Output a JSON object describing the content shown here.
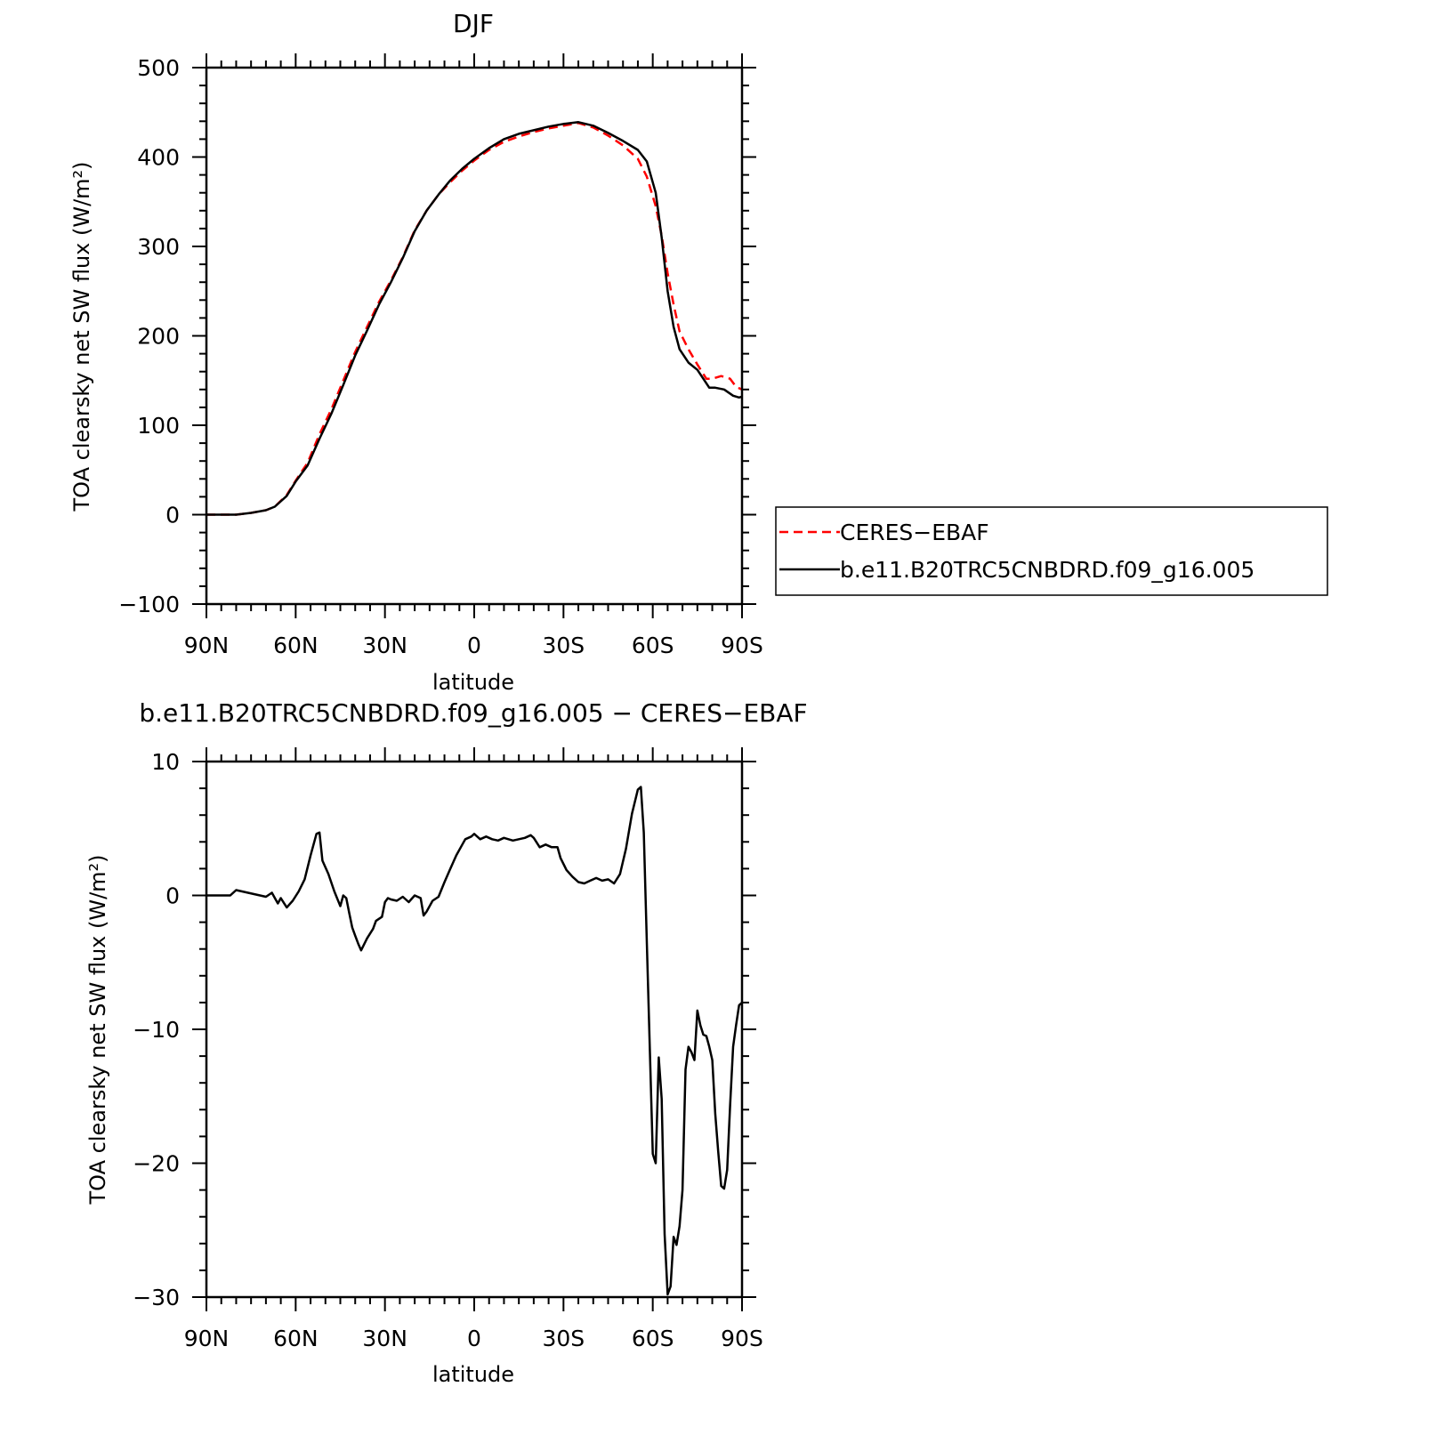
{
  "chart_data": [
    {
      "type": "line",
      "title": "DJF",
      "xlabel": "latitude",
      "ylabel": "TOA clearsky net SW flux (W/m²)",
      "x_ticks": [
        "90N",
        "60N",
        "30N",
        "0",
        "30S",
        "60S",
        "90S"
      ],
      "y_ticks": [
        "500",
        "400",
        "300",
        "200",
        "100",
        "0",
        "−100"
      ],
      "xlim": [
        90,
        -90
      ],
      "ylim": [
        -100,
        500
      ],
      "grid": false,
      "legend_position": "right",
      "legend": [
        "CERES−EBAF",
        "b.e11.B20TRC5CNBDRD.f09_g16.005"
      ],
      "series": [
        {
          "name": "CERES−EBAF",
          "color": "#ff0000",
          "dash": "dashed",
          "points": [
            [
              90,
              0
            ],
            [
              80,
              0
            ],
            [
              75,
              2
            ],
            [
              70,
              5
            ],
            [
              67,
              9
            ],
            [
              63,
              22
            ],
            [
              60,
              38
            ],
            [
              56,
              58
            ],
            [
              52,
              90
            ],
            [
              48,
              118
            ],
            [
              44,
              150
            ],
            [
              40,
              182
            ],
            [
              36,
              210
            ],
            [
              32,
              238
            ],
            [
              28,
              262
            ],
            [
              24,
              288
            ],
            [
              20,
              318
            ],
            [
              16,
              340
            ],
            [
              12,
              358
            ],
            [
              8,
              372
            ],
            [
              4,
              385
            ],
            [
              0,
              396
            ],
            [
              -5,
              408
            ],
            [
              -10,
              417
            ],
            [
              -15,
              423
            ],
            [
              -20,
              428
            ],
            [
              -25,
              432
            ],
            [
              -30,
              435
            ],
            [
              -35,
              438
            ],
            [
              -40,
              433
            ],
            [
              -45,
              424
            ],
            [
              -50,
              413
            ],
            [
              -55,
              398
            ],
            [
              -58,
              378
            ],
            [
              -61,
              345
            ],
            [
              -63,
              312
            ],
            [
              -65,
              270
            ],
            [
              -67,
              235
            ],
            [
              -69,
              205
            ],
            [
              -72,
              185
            ],
            [
              -75,
              168
            ],
            [
              -78,
              152
            ],
            [
              -80,
              152
            ],
            [
              -83,
              155
            ],
            [
              -86,
              152
            ],
            [
              -88,
              143
            ],
            [
              -90,
              140
            ]
          ]
        },
        {
          "name": "b.e11.B20TRC5CNBDRD.f09_g16.005",
          "color": "#000000",
          "dash": "solid",
          "points": [
            [
              90,
              0
            ],
            [
              80,
              0
            ],
            [
              75,
              2
            ],
            [
              70,
              5
            ],
            [
              67,
              9
            ],
            [
              63,
              21
            ],
            [
              60,
              37
            ],
            [
              56,
              55
            ],
            [
              52,
              85
            ],
            [
              48,
              113
            ],
            [
              44,
              145
            ],
            [
              40,
              178
            ],
            [
              36,
              206
            ],
            [
              32,
              235
            ],
            [
              28,
              260
            ],
            [
              24,
              287
            ],
            [
              20,
              317
            ],
            [
              16,
              340
            ],
            [
              12,
              358
            ],
            [
              8,
              374
            ],
            [
              4,
              387
            ],
            [
              0,
              398
            ],
            [
              -5,
              410
            ],
            [
              -10,
              420
            ],
            [
              -15,
              426
            ],
            [
              -20,
              430
            ],
            [
              -25,
              434
            ],
            [
              -30,
              437
            ],
            [
              -35,
              439
            ],
            [
              -40,
              435
            ],
            [
              -45,
              427
            ],
            [
              -50,
              418
            ],
            [
              -55,
              408
            ],
            [
              -58,
              395
            ],
            [
              -61,
              360
            ],
            [
              -63,
              310
            ],
            [
              -65,
              250
            ],
            [
              -67,
              210
            ],
            [
              -69,
              185
            ],
            [
              -72,
              170
            ],
            [
              -75,
              162
            ],
            [
              -77,
              152
            ],
            [
              -79,
              142
            ],
            [
              -81,
              142
            ],
            [
              -84,
              140
            ],
            [
              -87,
              133
            ],
            [
              -89,
              131
            ],
            [
              -90,
              132
            ]
          ]
        }
      ]
    },
    {
      "type": "line",
      "title": "b.e11.B20TRC5CNBDRD.f09_g16.005 − CERES−EBAF",
      "xlabel": "latitude",
      "ylabel": "TOA clearsky net SW flux (W/m²)",
      "x_ticks": [
        "90N",
        "60N",
        "30N",
        "0",
        "30S",
        "60S",
        "90S"
      ],
      "y_ticks": [
        "10",
        "0",
        "−10",
        "−20",
        "−30"
      ],
      "xlim": [
        90,
        -90
      ],
      "ylim": [
        -30,
        10
      ],
      "grid": false,
      "series": [
        {
          "name": "b.e11.B20TRC5CNBDRD.f09_g16.005 − CERES−EBAF",
          "color": "#000000",
          "dash": "solid",
          "points": [
            [
              90,
              0
            ],
            [
              82,
              0
            ],
            [
              80,
              0.4
            ],
            [
              78,
              0.3
            ],
            [
              74,
              0.1
            ],
            [
              70,
              -0.1
            ],
            [
              68,
              0.2
            ],
            [
              66,
              -0.6
            ],
            [
              65,
              -0.2
            ],
            [
              63,
              -0.9
            ],
            [
              61,
              -0.4
            ],
            [
              59,
              0.3
            ],
            [
              57,
              1.2
            ],
            [
              55,
              3.0
            ],
            [
              53,
              4.6
            ],
            [
              52,
              4.7
            ],
            [
              51,
              2.6
            ],
            [
              49,
              1.6
            ],
            [
              47,
              0.3
            ],
            [
              45,
              -0.8
            ],
            [
              44,
              0
            ],
            [
              43,
              -0.2
            ],
            [
              42,
              -1.3
            ],
            [
              41,
              -2.4
            ],
            [
              40,
              -3.0
            ],
            [
              39,
              -3.6
            ],
            [
              38,
              -4.1
            ],
            [
              36,
              -3.2
            ],
            [
              34,
              -2.5
            ],
            [
              33,
              -1.9
            ],
            [
              31,
              -1.6
            ],
            [
              30,
              -0.5
            ],
            [
              29,
              -0.2
            ],
            [
              28,
              -0.3
            ],
            [
              26,
              -0.4
            ],
            [
              24,
              -0.1
            ],
            [
              22,
              -0.5
            ],
            [
              20,
              0
            ],
            [
              18,
              -0.2
            ],
            [
              17,
              -1.5
            ],
            [
              16,
              -1.2
            ],
            [
              14,
              -0.4
            ],
            [
              12,
              -0.1
            ],
            [
              10,
              1.0
            ],
            [
              8,
              2.0
            ],
            [
              6,
              3.0
            ],
            [
              4,
              3.8
            ],
            [
              3,
              4.2
            ],
            [
              1,
              4.4
            ],
            [
              0,
              4.6
            ],
            [
              -2,
              4.2
            ],
            [
              -4,
              4.4
            ],
            [
              -6,
              4.2
            ],
            [
              -8,
              4.1
            ],
            [
              -10,
              4.3
            ],
            [
              -13,
              4.1
            ],
            [
              -15,
              4.2
            ],
            [
              -17,
              4.3
            ],
            [
              -19,
              4.5
            ],
            [
              -20,
              4.3
            ],
            [
              -22,
              3.6
            ],
            [
              -24,
              3.8
            ],
            [
              -26,
              3.6
            ],
            [
              -28,
              3.6
            ],
            [
              -29,
              2.8
            ],
            [
              -31,
              1.9
            ],
            [
              -33,
              1.4
            ],
            [
              -35,
              1.0
            ],
            [
              -37,
              0.9
            ],
            [
              -39,
              1.1
            ],
            [
              -41,
              1.3
            ],
            [
              -43,
              1.1
            ],
            [
              -45,
              1.2
            ],
            [
              -47,
              0.9
            ],
            [
              -49,
              1.6
            ],
            [
              -51,
              3.5
            ],
            [
              -53,
              6.1
            ],
            [
              -55,
              7.9
            ],
            [
              -56,
              8.1
            ],
            [
              -57,
              4.7
            ],
            [
              -58,
              -3.5
            ],
            [
              -59,
              -11.3
            ],
            [
              -60,
              -19.3
            ],
            [
              -61,
              -20.0
            ],
            [
              -62,
              -12.1
            ],
            [
              -63,
              -15.2
            ],
            [
              -64,
              -25.3
            ],
            [
              -65,
              -29.8
            ],
            [
              -66,
              -29.2
            ],
            [
              -67,
              -25.5
            ],
            [
              -68,
              -26.1
            ],
            [
              -69,
              -24.7
            ],
            [
              -70,
              -22.0
            ],
            [
              -71,
              -13.0
            ],
            [
              -72,
              -11.3
            ],
            [
              -73,
              -11.7
            ],
            [
              -74,
              -12.3
            ],
            [
              -75,
              -8.6
            ],
            [
              -76,
              -9.7
            ],
            [
              -77,
              -10.4
            ],
            [
              -78,
              -10.5
            ],
            [
              -79,
              -11.3
            ],
            [
              -80,
              -12.3
            ],
            [
              -81,
              -16.3
            ],
            [
              -82,
              -19.1
            ],
            [
              -83,
              -21.7
            ],
            [
              -84,
              -21.9
            ],
            [
              -85,
              -20.5
            ],
            [
              -86,
              -15.7
            ],
            [
              -87,
              -11.3
            ],
            [
              -88,
              -9.7
            ],
            [
              -89,
              -8.2
            ],
            [
              -90,
              -8.0
            ]
          ]
        }
      ]
    }
  ]
}
